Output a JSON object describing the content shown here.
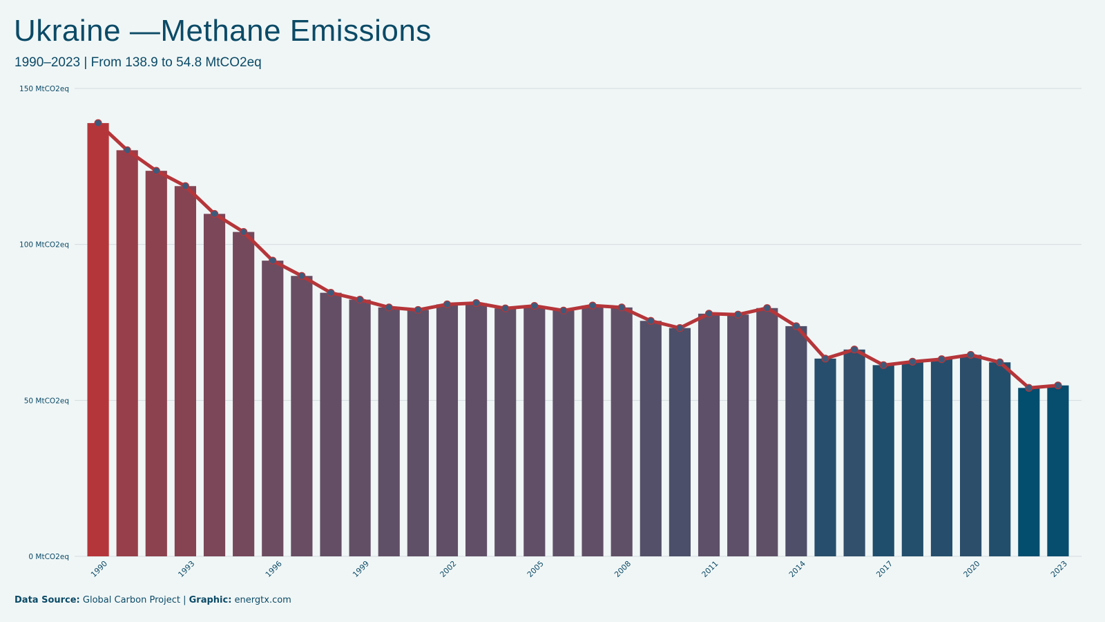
{
  "title": "Ukraine —Methane Emissions",
  "subtitle": "1990–2023 | From 138.9 to 54.8 MtCO2eq",
  "source": {
    "data_label": "Data Source:",
    "data_value": "Global Carbon Project",
    "separator": "|",
    "graphic_label": "Graphic:",
    "graphic_value": "energtx.com"
  },
  "colors": {
    "background": "#f0f6f6",
    "text": "#0b4a66",
    "line": "#b5363a",
    "point": "#3e5a7a",
    "bar_start": "#b5363a",
    "bar_mid": "#5e5068",
    "bar_end": "#034d6e",
    "grid": "#d4dcdf"
  },
  "chart_data": {
    "type": "bar",
    "overlay": "line",
    "x": [
      1990,
      1991,
      1992,
      1993,
      1994,
      1995,
      1996,
      1997,
      1998,
      1999,
      2000,
      2001,
      2002,
      2003,
      2004,
      2005,
      2006,
      2007,
      2008,
      2009,
      2010,
      2011,
      2012,
      2013,
      2014,
      2015,
      2016,
      2017,
      2018,
      2019,
      2020,
      2021,
      2022,
      2023
    ],
    "values": [
      138.9,
      130.2,
      123.6,
      118.7,
      109.8,
      104.0,
      94.8,
      89.9,
      84.5,
      82.3,
      79.8,
      79.0,
      80.8,
      81.2,
      79.5,
      80.3,
      78.8,
      80.4,
      79.8,
      75.5,
      73.2,
      77.8,
      77.5,
      79.6,
      73.8,
      63.4,
      66.3,
      61.3,
      62.4,
      63.2,
      64.6,
      62.2,
      54.0,
      54.8
    ],
    "xticks": [
      "1990",
      "1993",
      "1996",
      "1999",
      "2002",
      "2005",
      "2008",
      "2011",
      "2014",
      "2017",
      "2020",
      "2023"
    ],
    "yticks": [
      "0 MtCO2eq",
      "50 MtCO2eq",
      "100 MtCO2eq",
      "150 MtCO2eq"
    ],
    "ylim": [
      0,
      150
    ],
    "grid": true
  }
}
